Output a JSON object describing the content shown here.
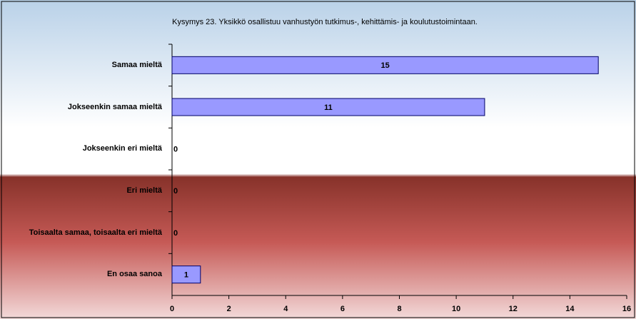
{
  "chart_data": {
    "type": "bar",
    "orientation": "horizontal",
    "title": "Kysymys 23. Yksikkö osallistuu vanhustyön tutkimus-, kehittämis- ja koulutustoimintaan.",
    "categories": [
      "Samaa mieltä",
      "Jokseenkin samaa mieltä",
      "Jokseenkin eri mieltä",
      "Eri mieltä",
      "Toisaalta samaa, toisaalta eri mieltä",
      "En osaa sanoa"
    ],
    "values": [
      15,
      11,
      0,
      0,
      0,
      1
    ],
    "color": "#9999ff",
    "xlim": [
      0,
      16
    ],
    "xticks": [
      0,
      2,
      4,
      6,
      8,
      10,
      12,
      14,
      16
    ],
    "grid": false
  }
}
